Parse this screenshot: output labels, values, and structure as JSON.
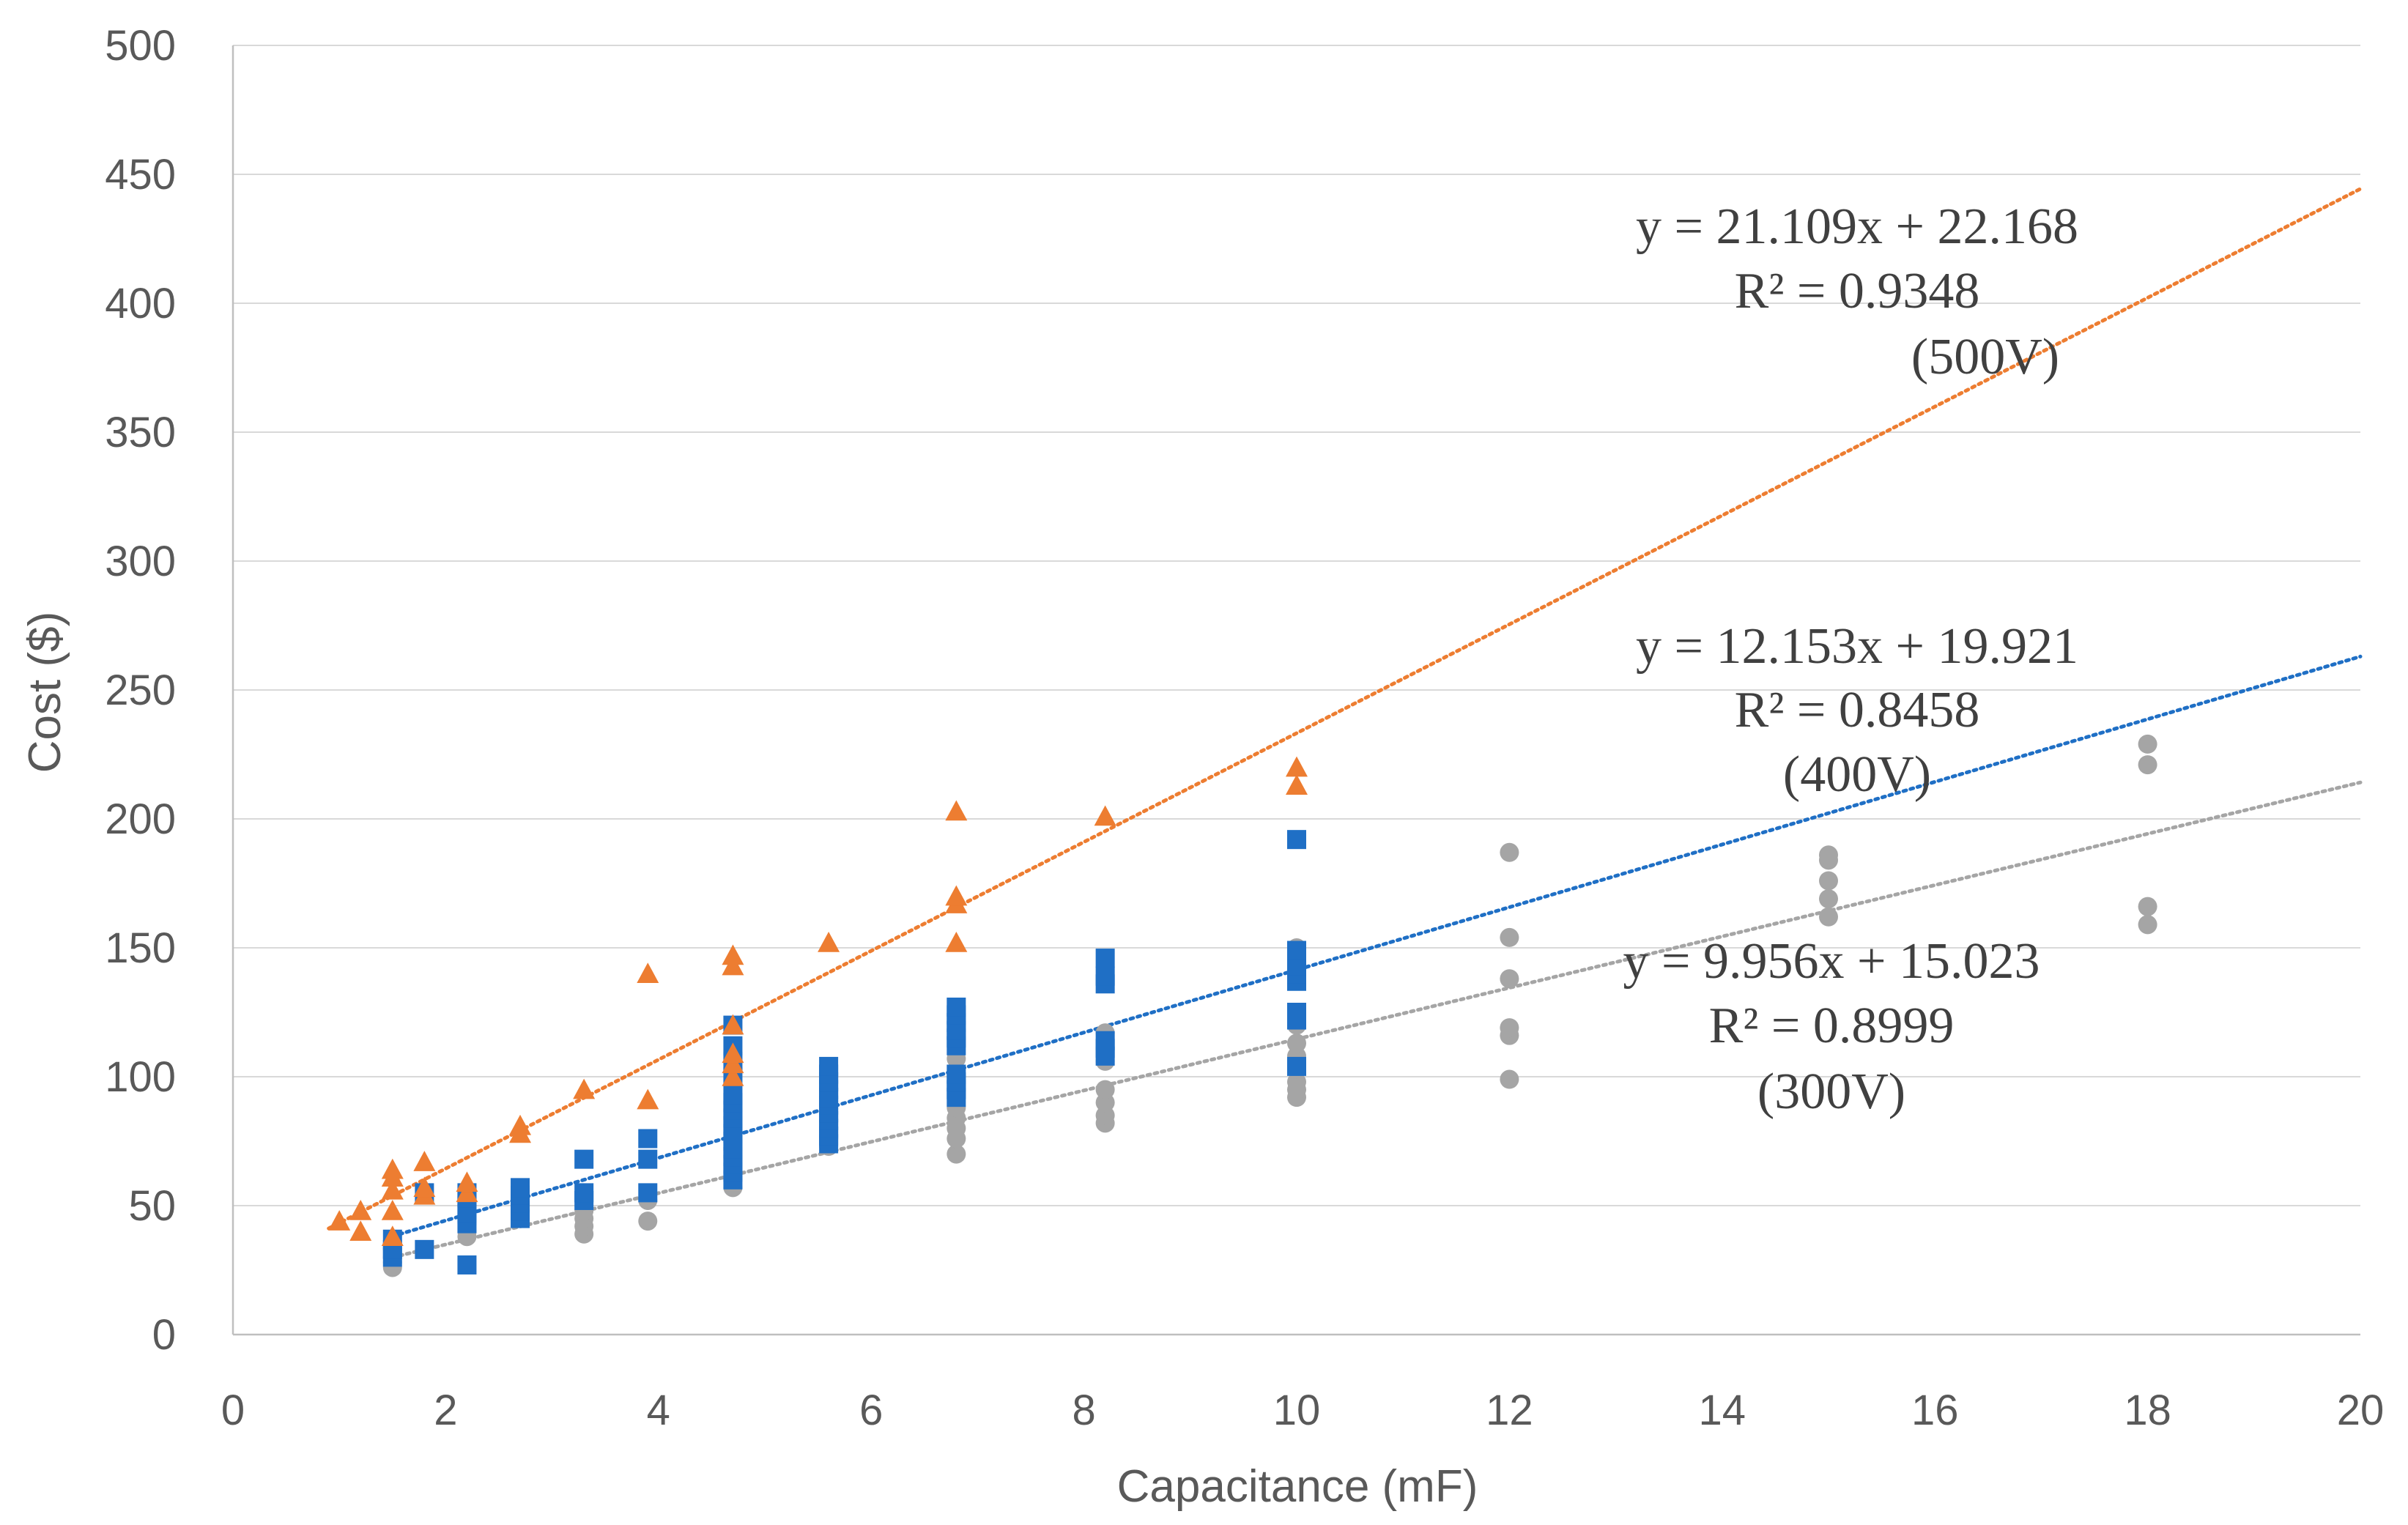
{
  "chart_data": {
    "type": "scatter",
    "title": "",
    "xlabel": "Capacitance (mF)",
    "ylabel": "Cost ($)",
    "xlim": [
      0,
      20
    ],
    "ylim": [
      0,
      500
    ],
    "xticks": [
      0,
      2,
      4,
      6,
      8,
      10,
      12,
      14,
      16,
      18,
      20
    ],
    "yticks": [
      0,
      50,
      100,
      150,
      200,
      250,
      300,
      350,
      400,
      450,
      500
    ],
    "x_tick_labels": [
      "0",
      "2",
      "4",
      "6",
      "8",
      "10",
      "12",
      "14",
      "16",
      "18",
      "20"
    ],
    "y_tick_labels": [
      "0",
      "50",
      "100",
      "150",
      "200",
      "250",
      "300",
      "350",
      "400",
      "450",
      "500"
    ],
    "grid": "horizontal",
    "legend": "none",
    "series": [
      {
        "name": "300V",
        "marker": "circle",
        "color": "#A5A5A5",
        "trendline": {
          "slope": 9.956,
          "intercept": 15.023,
          "x_range": [
            1.5,
            20
          ]
        },
        "annotation": [
          "y = 9.956x + 15.023",
          "R² = 0.8999",
          "(300V)"
        ],
        "points": [
          [
            1.5,
            26
          ],
          [
            1.5,
            28
          ],
          [
            1.5,
            30
          ],
          [
            1.5,
            33
          ],
          [
            2.2,
            38
          ],
          [
            2.2,
            40
          ],
          [
            2.2,
            43
          ],
          [
            2.7,
            45
          ],
          [
            2.7,
            48
          ],
          [
            3.3,
            39
          ],
          [
            3.3,
            42
          ],
          [
            3.3,
            45
          ],
          [
            3.3,
            48
          ],
          [
            3.9,
            44
          ],
          [
            3.9,
            52
          ],
          [
            4.7,
            57
          ],
          [
            4.7,
            60
          ],
          [
            4.7,
            63
          ],
          [
            5.6,
            73
          ],
          [
            5.6,
            76
          ],
          [
            6.8,
            70
          ],
          [
            6.8,
            76
          ],
          [
            6.8,
            80
          ],
          [
            6.8,
            84
          ],
          [
            6.8,
            88
          ],
          [
            6.8,
            100
          ],
          [
            6.8,
            107
          ],
          [
            8.2,
            82
          ],
          [
            8.2,
            85
          ],
          [
            8.2,
            90
          ],
          [
            8.2,
            95
          ],
          [
            8.2,
            106
          ],
          [
            8.2,
            117
          ],
          [
            10,
            92
          ],
          [
            10,
            95
          ],
          [
            10,
            98
          ],
          [
            10,
            103
          ],
          [
            10,
            108
          ],
          [
            10,
            113
          ],
          [
            10,
            120
          ],
          [
            10,
            150
          ],
          [
            12,
            99
          ],
          [
            12,
            116
          ],
          [
            12,
            119
          ],
          [
            12,
            138
          ],
          [
            12,
            154
          ],
          [
            12,
            187
          ],
          [
            15,
            162
          ],
          [
            15,
            169
          ],
          [
            15,
            176
          ],
          [
            15,
            184
          ],
          [
            15,
            186
          ],
          [
            18,
            159
          ],
          [
            18,
            166
          ],
          [
            18,
            221
          ],
          [
            18,
            229
          ]
        ]
      },
      {
        "name": "400V",
        "marker": "square",
        "color": "#1F6FC5",
        "trendline": {
          "slope": 12.153,
          "intercept": 19.921,
          "x_range": [
            1.5,
            20
          ]
        },
        "annotation": [
          "y = 12.153x + 19.921",
          "R² = 0.8458",
          "(400V)"
        ],
        "points": [
          [
            1.5,
            30
          ],
          [
            1.5,
            33
          ],
          [
            1.5,
            37
          ],
          [
            1.8,
            33
          ],
          [
            1.8,
            55
          ],
          [
            2.2,
            27
          ],
          [
            2.2,
            43
          ],
          [
            2.2,
            47
          ],
          [
            2.2,
            50
          ],
          [
            2.2,
            53
          ],
          [
            2.2,
            55
          ],
          [
            2.7,
            45
          ],
          [
            2.7,
            48
          ],
          [
            2.7,
            51
          ],
          [
            2.7,
            54
          ],
          [
            2.7,
            57
          ],
          [
            3.3,
            52
          ],
          [
            3.3,
            55
          ],
          [
            3.3,
            68
          ],
          [
            3.9,
            55
          ],
          [
            3.9,
            68
          ],
          [
            3.9,
            76
          ],
          [
            4.7,
            60
          ],
          [
            4.7,
            63
          ],
          [
            4.7,
            66
          ],
          [
            4.7,
            69
          ],
          [
            4.7,
            72
          ],
          [
            4.7,
            75
          ],
          [
            4.7,
            78
          ],
          [
            4.7,
            81
          ],
          [
            4.7,
            84
          ],
          [
            4.7,
            87
          ],
          [
            4.7,
            90
          ],
          [
            4.7,
            93
          ],
          [
            4.7,
            100
          ],
          [
            4.7,
            106
          ],
          [
            4.7,
            112
          ],
          [
            4.7,
            120
          ],
          [
            5.6,
            74
          ],
          [
            5.6,
            77
          ],
          [
            5.6,
            80
          ],
          [
            5.6,
            83
          ],
          [
            5.6,
            86
          ],
          [
            5.6,
            89
          ],
          [
            5.6,
            92
          ],
          [
            5.6,
            95
          ],
          [
            5.6,
            98
          ],
          [
            5.6,
            101
          ],
          [
            5.6,
            104
          ],
          [
            6.8,
            92
          ],
          [
            6.8,
            95
          ],
          [
            6.8,
            98
          ],
          [
            6.8,
            101
          ],
          [
            6.8,
            112
          ],
          [
            6.8,
            115
          ],
          [
            6.8,
            118
          ],
          [
            6.8,
            121
          ],
          [
            6.8,
            124
          ],
          [
            6.8,
            127
          ],
          [
            8.2,
            108
          ],
          [
            8.2,
            111
          ],
          [
            8.2,
            114
          ],
          [
            8.2,
            136
          ],
          [
            8.2,
            139
          ],
          [
            8.2,
            146
          ],
          [
            10,
            104
          ],
          [
            10,
            122
          ],
          [
            10,
            125
          ],
          [
            10,
            137
          ],
          [
            10,
            140
          ],
          [
            10,
            143
          ],
          [
            10,
            146
          ],
          [
            10,
            149
          ],
          [
            10,
            192
          ]
        ]
      },
      {
        "name": "500V",
        "marker": "triangle",
        "color": "#ED7D31",
        "trendline": {
          "slope": 21.109,
          "intercept": 22.168,
          "x_range": [
            0.9,
            20
          ]
        },
        "annotation": [
          "y = 21.109x + 22.168",
          "R² = 0.9348",
          "(500V)"
        ],
        "points": [
          [
            1.0,
            44
          ],
          [
            1.2,
            40
          ],
          [
            1.2,
            48
          ],
          [
            1.5,
            38
          ],
          [
            1.5,
            48
          ],
          [
            1.5,
            56
          ],
          [
            1.5,
            61
          ],
          [
            1.5,
            64
          ],
          [
            1.8,
            54
          ],
          [
            1.8,
            57
          ],
          [
            1.8,
            67
          ],
          [
            2.2,
            55
          ],
          [
            2.2,
            59
          ],
          [
            2.7,
            78
          ],
          [
            2.7,
            81
          ],
          [
            3.3,
            95
          ],
          [
            3.9,
            91
          ],
          [
            3.9,
            140
          ],
          [
            4.7,
            100
          ],
          [
            4.7,
            105
          ],
          [
            4.7,
            109
          ],
          [
            4.7,
            120
          ],
          [
            4.7,
            143
          ],
          [
            4.7,
            147
          ],
          [
            5.6,
            152
          ],
          [
            6.8,
            152
          ],
          [
            6.8,
            167
          ],
          [
            6.8,
            170
          ],
          [
            6.8,
            203
          ],
          [
            8.2,
            201
          ],
          [
            10,
            213
          ],
          [
            10,
            220
          ]
        ]
      }
    ]
  }
}
